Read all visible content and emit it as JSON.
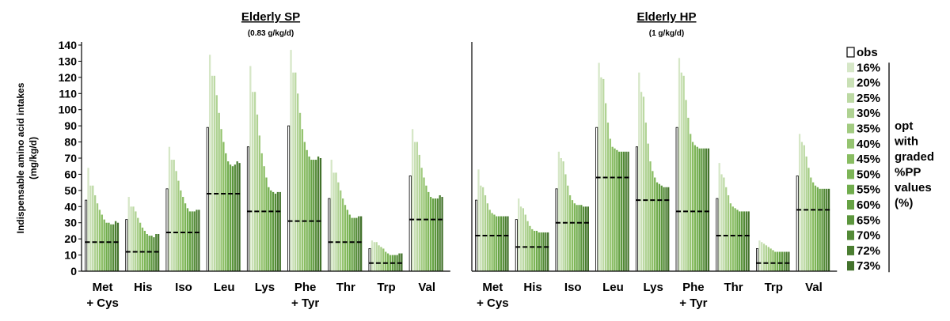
{
  "panels": [
    {
      "title": "Elderly SP",
      "subtitle": "(0.83 g/kg/d)"
    },
    {
      "title": "Elderly HP",
      "subtitle": "(1 g/kg/d)"
    }
  ],
  "legend": {
    "entries": [
      "obs",
      "16%",
      "20%",
      "25%",
      "30%",
      "35%",
      "40%",
      "45%",
      "50%",
      "55%",
      "60%",
      "65%",
      "70%",
      "72%",
      "73%"
    ],
    "bracket_label": [
      "opt",
      "with",
      "graded",
      "%PP",
      "values",
      "(%)"
    ],
    "placement": "right"
  },
  "colors": {
    "obs_fill": "#ffffff",
    "obs_stroke": "#000000",
    "scenario_gradient": [
      "#d6e7c7",
      "#c9e0b5",
      "#bcd9a3",
      "#afd292",
      "#a2cb81",
      "#95c470",
      "#89bd62",
      "#7db557",
      "#71ad4d",
      "#66a244",
      "#5c963d",
      "#538a37",
      "#4b7e31",
      "#43722c"
    ],
    "reference_line": "#000000"
  },
  "chart_data": [
    {
      "type": "bar",
      "title": "Elderly SP",
      "subtitle": "(0.83 g/kg/d)",
      "ylabel": "Indispensable amino acid intakes (mg/kg/d)",
      "xlabel": "",
      "ylim": [
        0,
        140
      ],
      "yticks": [
        0,
        10,
        20,
        30,
        40,
        50,
        60,
        70,
        80,
        90,
        100,
        110,
        120,
        130,
        140
      ],
      "categories": [
        "Met + Cys",
        "His",
        "Iso",
        "Leu",
        "Lys",
        "Phe + Tyr",
        "Thr",
        "Trp",
        "Val"
      ],
      "series_order": [
        "obs",
        "16%",
        "20%",
        "25%",
        "30%",
        "35%",
        "40%",
        "45%",
        "50%",
        "55%",
        "60%",
        "65%",
        "70%",
        "72%",
        "73%"
      ],
      "values": {
        "Met + Cys": [
          44,
          64,
          53,
          53,
          47,
          42,
          38,
          35,
          32,
          30,
          30,
          29,
          29,
          31,
          30
        ],
        "His": [
          32,
          46,
          40,
          40,
          37,
          33,
          30,
          27,
          25,
          23,
          22,
          22,
          21,
          23,
          23
        ],
        "Iso": [
          51,
          77,
          69,
          69,
          62,
          56,
          50,
          46,
          42,
          39,
          37,
          37,
          37,
          38,
          38
        ],
        "Leu": [
          89,
          134,
          121,
          121,
          109,
          98,
          88,
          80,
          73,
          68,
          66,
          65,
          66,
          68,
          67
        ],
        "Lys": [
          77,
          127,
          111,
          111,
          97,
          84,
          73,
          65,
          58,
          52,
          50,
          49,
          48,
          49,
          49
        ],
        "Phe + Tyr": [
          90,
          137,
          123,
          123,
          110,
          98,
          88,
          80,
          75,
          71,
          69,
          69,
          69,
          71,
          70
        ],
        "Thr": [
          45,
          69,
          61,
          61,
          55,
          50,
          45,
          41,
          38,
          35,
          33,
          33,
          33,
          34,
          34
        ],
        "Trp": [
          14,
          19,
          18,
          18,
          16,
          15,
          14,
          12,
          11,
          10,
          10,
          10,
          10,
          11,
          11
        ],
        "Val": [
          59,
          88,
          80,
          80,
          72,
          64,
          58,
          53,
          49,
          46,
          45,
          45,
          45,
          47,
          46
        ]
      },
      "reference": {
        "Met + Cys": 18,
        "His": 12,
        "Iso": 24,
        "Leu": 48,
        "Lys": 37,
        "Phe + Tyr": 31,
        "Thr": 18,
        "Trp": 5,
        "Val": 32
      }
    },
    {
      "type": "bar",
      "title": "Elderly HP",
      "subtitle": "(1 g/kg/d)",
      "ylabel": "",
      "xlabel": "",
      "ylim": [
        0,
        140
      ],
      "categories": [
        "Met + Cys",
        "His",
        "Iso",
        "Leu",
        "Lys",
        "Phe + Tyr",
        "Thr",
        "Trp",
        "Val"
      ],
      "series_order": [
        "obs",
        "16%",
        "20%",
        "25%",
        "30%",
        "35%",
        "40%",
        "45%",
        "50%",
        "55%",
        "60%",
        "65%",
        "70%",
        "72%",
        "73%"
      ],
      "values": {
        "Met + Cys": [
          44,
          63,
          53,
          52,
          47,
          42,
          38,
          36,
          35,
          34,
          34,
          34,
          34,
          34,
          34
        ],
        "His": [
          32,
          45,
          40,
          39,
          35,
          31,
          28,
          26,
          25,
          25,
          24,
          24,
          24,
          24,
          24
        ],
        "Iso": [
          51,
          74,
          70,
          68,
          60,
          53,
          47,
          44,
          42,
          41,
          41,
          41,
          40,
          40,
          40
        ],
        "Leu": [
          89,
          129,
          120,
          119,
          104,
          92,
          82,
          77,
          76,
          75,
          74,
          74,
          74,
          74,
          74
        ],
        "Lys": [
          77,
          123,
          111,
          108,
          92,
          79,
          68,
          62,
          58,
          55,
          54,
          53,
          52,
          52,
          52
        ],
        "Phe + Tyr": [
          89,
          132,
          123,
          121,
          106,
          95,
          85,
          80,
          78,
          77,
          76,
          76,
          76,
          76,
          76
        ],
        "Thr": [
          45,
          67,
          60,
          58,
          52,
          47,
          42,
          40,
          39,
          38,
          37,
          37,
          37,
          37,
          37
        ],
        "Trp": [
          14,
          19,
          18,
          17,
          16,
          15,
          14,
          13,
          12,
          12,
          12,
          12,
          12,
          12,
          12
        ],
        "Val": [
          59,
          85,
          80,
          78,
          71,
          64,
          58,
          55,
          53,
          52,
          51,
          51,
          51,
          51,
          51
        ]
      },
      "reference": {
        "Met + Cys": 22,
        "His": 15,
        "Iso": 30,
        "Leu": 58,
        "Lys": 44,
        "Phe + Tyr": 37,
        "Thr": 22,
        "Trp": 5,
        "Val": 38
      }
    }
  ]
}
